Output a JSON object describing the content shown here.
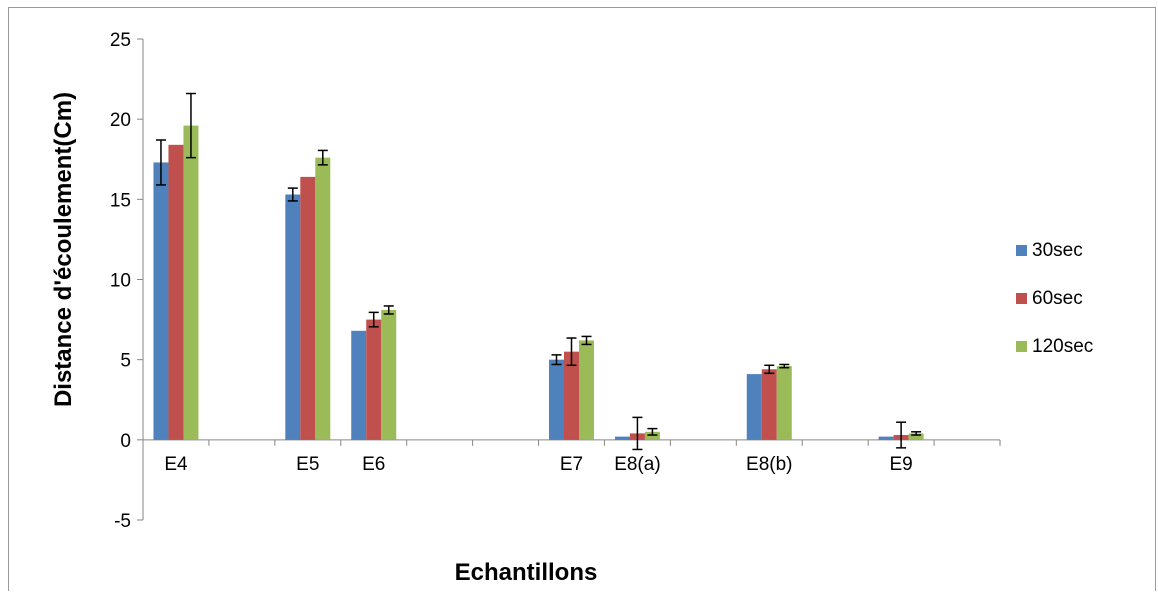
{
  "chart_data": {
    "type": "bar",
    "title": "",
    "xlabel": "Echantillons",
    "ylabel": "Distance d'écoulement(Cm)",
    "ylim": [
      -5,
      25
    ],
    "yticks": [
      -5,
      0,
      5,
      10,
      15,
      20,
      25
    ],
    "grid": false,
    "legend_position": "right",
    "slot_count": 13,
    "categories": [
      {
        "label": "E4",
        "slot": 0
      },
      {
        "label": "E5",
        "slot": 2
      },
      {
        "label": "E6",
        "slot": 3
      },
      {
        "label": "E7",
        "slot": 6
      },
      {
        "label": "E8(a)",
        "slot": 7
      },
      {
        "label": "E8(b)",
        "slot": 9
      },
      {
        "label": "E9",
        "slot": 11
      }
    ],
    "series": [
      {
        "name": "30sec",
        "color": "#4F81BD",
        "values": [
          17.3,
          15.3,
          6.8,
          5.0,
          0.2,
          4.1,
          0.2
        ],
        "errors": [
          1.4,
          0.4,
          0,
          0.3,
          0,
          0,
          0
        ]
      },
      {
        "name": "60sec",
        "color": "#C0504D",
        "values": [
          18.4,
          16.4,
          7.5,
          5.5,
          0.4,
          4.4,
          0.3
        ],
        "errors": [
          0,
          0,
          0.45,
          0.85,
          1.0,
          0.25,
          0.8
        ]
      },
      {
        "name": "120sec",
        "color": "#9BBB59",
        "values": [
          19.6,
          17.6,
          8.1,
          6.2,
          0.5,
          4.6,
          0.4
        ],
        "errors": [
          2.0,
          0.45,
          0.25,
          0.25,
          0.2,
          0.1,
          0.1
        ]
      }
    ]
  }
}
